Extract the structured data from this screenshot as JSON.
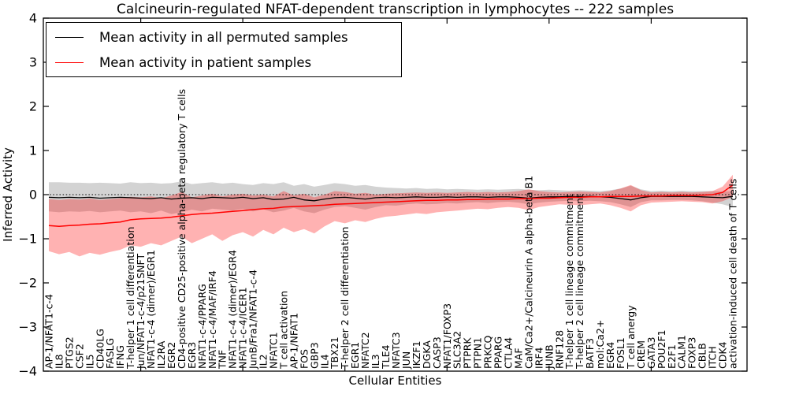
{
  "legend": {
    "entries": [
      {
        "label": "Mean activity in all permuted samples",
        "color": "#000000"
      },
      {
        "label": "Mean activity in patient samples",
        "color": "#ff0000"
      }
    ]
  },
  "chart_data": {
    "type": "line",
    "title": "Calcineurin-regulated NFAT-dependent transcription in lymphocytes -- 222 samples",
    "xlabel": "Cellular Entities",
    "ylabel": "Inferred Activity",
    "ylim": [
      -4,
      4
    ],
    "yticks": [
      4,
      3,
      2,
      1,
      0,
      -1,
      -2,
      -3,
      -4
    ],
    "x_tick_step": 10,
    "grid": false,
    "zero_line_style": "dotted",
    "legend_position": "upper left",
    "categories": [
      "AP-1/NFAT1-c-4",
      "IL8",
      "PTGS2",
      "CSF2",
      "IL5",
      "CD40LG",
      "FASLG",
      "IFNG",
      "T-helper 1 cell differentiation",
      "Jun/NFAT1-c-4/p21SNFT",
      "NFAT1-c-4 (dimer)/EGR1",
      "IL2RA",
      "EGR2",
      "CD4-positive CD25-positive alpha-beta regulatory T cells",
      "EGR3",
      "NFAT1-c-4/PPARG",
      "NFAT1-c-4/MAF/IRF4",
      "TNF",
      "NFAT1-c-4 (dimer)/EGR4",
      "NFAT1-c-4/ICER1",
      "JunB/Fra1/NFAT1-c-4",
      "IL2",
      "NFATC1",
      "T cell activation",
      "AP-1/NFAT1",
      "FOS",
      "GBP3",
      "IL4",
      "TBX21",
      "T-helper 2 cell differentiation",
      "EGR1",
      "NFATC2",
      "IL3",
      "TLE4",
      "NFATC3",
      "JUN",
      "IKZF1",
      "DGKA",
      "CASP3",
      "NFAT1/FOXP3",
      "SLC3A2",
      "PTPRK",
      "PTPN1",
      "PRKCQ",
      "PPARG",
      "CTLA4",
      "MAF",
      "CaM/Ca2+/Calcineurin A alpha-beta B1",
      "IRF4",
      "JUNB",
      "RNF128",
      "T-helper 1 cell lineage commitment",
      "T-helper 2 cell lineage commitment",
      "BATF3",
      "mol:Ca2+",
      "EGR4",
      "FOSL1",
      "T cell anergy",
      "CREM",
      "GATA3",
      "POU2F1",
      "E2F1",
      "CALM1",
      "FOXP3",
      "CBLB",
      "ITCH",
      "CDK4",
      "activation-induced cell death of T cells"
    ],
    "series": [
      {
        "name": "Mean activity in all permuted samples",
        "color": "#000000",
        "band_color": "rgba(130,130,130,0.35)",
        "values": [
          -0.06,
          -0.07,
          -0.06,
          -0.07,
          -0.06,
          -0.08,
          -0.07,
          -0.06,
          -0.07,
          -0.08,
          -0.09,
          -0.07,
          -0.1,
          -0.08,
          -0.07,
          -0.09,
          -0.06,
          -0.07,
          -0.08,
          -0.06,
          -0.09,
          -0.07,
          -0.11,
          -0.1,
          -0.06,
          -0.12,
          -0.14,
          -0.1,
          -0.07,
          -0.06,
          -0.08,
          -0.1,
          -0.07,
          -0.06,
          -0.07,
          -0.06,
          -0.05,
          -0.06,
          -0.06,
          -0.05,
          -0.06,
          -0.05,
          -0.05,
          -0.06,
          -0.05,
          -0.05,
          -0.06,
          -0.08,
          -0.06,
          -0.05,
          -0.05,
          -0.04,
          -0.05,
          -0.04,
          -0.05,
          -0.06,
          -0.09,
          -0.12,
          -0.07,
          -0.04,
          -0.04,
          -0.04,
          -0.04,
          -0.04,
          -0.05,
          -0.06,
          -0.07,
          -0.04
        ],
        "band_upper": [
          0.28,
          0.28,
          0.27,
          0.27,
          0.26,
          0.27,
          0.26,
          0.25,
          0.28,
          0.26,
          0.27,
          0.25,
          0.26,
          0.3,
          0.24,
          0.26,
          0.28,
          0.25,
          0.27,
          0.24,
          0.22,
          0.26,
          0.24,
          0.28,
          0.2,
          0.24,
          0.18,
          0.22,
          0.26,
          0.24,
          0.2,
          0.22,
          0.18,
          0.16,
          0.15,
          0.14,
          0.15,
          0.13,
          0.14,
          0.12,
          0.13,
          0.12,
          0.11,
          0.12,
          0.11,
          0.12,
          0.13,
          0.11,
          0.1,
          0.11,
          0.1,
          0.09,
          0.1,
          0.09,
          0.08,
          0.1,
          0.14,
          0.2,
          0.12,
          0.08,
          0.09,
          0.08,
          0.09,
          0.08,
          0.08,
          0.08,
          0.07,
          0.08
        ],
        "band_lower": [
          -0.38,
          -0.4,
          -0.38,
          -0.39,
          -0.37,
          -0.4,
          -0.38,
          -0.36,
          -0.4,
          -0.38,
          -0.42,
          -0.36,
          -0.44,
          -0.4,
          -0.34,
          -0.38,
          -0.32,
          -0.34,
          -0.36,
          -0.32,
          -0.38,
          -0.33,
          -0.4,
          -0.36,
          -0.3,
          -0.38,
          -0.42,
          -0.34,
          -0.28,
          -0.26,
          -0.3,
          -0.34,
          -0.28,
          -0.24,
          -0.25,
          -0.22,
          -0.2,
          -0.22,
          -0.21,
          -0.19,
          -0.2,
          -0.18,
          -0.17,
          -0.19,
          -0.17,
          -0.16,
          -0.18,
          -0.22,
          -0.18,
          -0.16,
          -0.15,
          -0.14,
          -0.15,
          -0.14,
          -0.15,
          -0.17,
          -0.22,
          -0.28,
          -0.17,
          -0.13,
          -0.13,
          -0.12,
          -0.12,
          -0.13,
          -0.15,
          -0.18,
          -0.22,
          -0.28
        ]
      },
      {
        "name": "Mean activity in patient samples",
        "color": "#ff0000",
        "band_color": "rgba(255,0,0,0.30)",
        "values": [
          -0.7,
          -0.72,
          -0.7,
          -0.69,
          -0.67,
          -0.66,
          -0.64,
          -0.62,
          -0.57,
          -0.55,
          -0.54,
          -0.53,
          -0.51,
          -0.48,
          -0.45,
          -0.43,
          -0.42,
          -0.4,
          -0.38,
          -0.36,
          -0.34,
          -0.32,
          -0.31,
          -0.28,
          -0.27,
          -0.26,
          -0.25,
          -0.24,
          -0.22,
          -0.21,
          -0.2,
          -0.19,
          -0.18,
          -0.17,
          -0.16,
          -0.15,
          -0.14,
          -0.13,
          -0.13,
          -0.12,
          -0.12,
          -0.11,
          -0.11,
          -0.1,
          -0.1,
          -0.1,
          -0.09,
          -0.09,
          -0.08,
          -0.08,
          -0.07,
          -0.06,
          -0.06,
          -0.05,
          -0.05,
          -0.04,
          -0.04,
          -0.04,
          -0.03,
          -0.03,
          -0.03,
          -0.02,
          -0.02,
          -0.02,
          -0.01,
          0.0,
          0.05,
          0.22
        ],
        "band_upper": [
          -0.1,
          -0.12,
          -0.1,
          -0.11,
          -0.09,
          -0.12,
          -0.1,
          -0.08,
          -0.05,
          -0.06,
          -0.04,
          -0.08,
          -0.02,
          0.06,
          -0.06,
          -0.02,
          0.02,
          -0.04,
          0.0,
          0.02,
          -0.02,
          0.0,
          -0.04,
          0.08,
          -0.02,
          0.02,
          -0.06,
          0.0,
          0.08,
          0.06,
          0.02,
          0.04,
          0.0,
          0.02,
          0.03,
          0.04,
          0.05,
          0.04,
          0.05,
          0.04,
          0.05,
          0.06,
          0.05,
          0.06,
          0.05,
          0.06,
          0.08,
          0.12,
          0.08,
          0.06,
          0.05,
          0.06,
          0.07,
          0.06,
          0.05,
          0.08,
          0.14,
          0.22,
          0.1,
          0.05,
          0.06,
          0.05,
          0.06,
          0.05,
          0.06,
          0.08,
          0.18,
          0.45
        ],
        "band_lower": [
          -1.28,
          -1.35,
          -1.3,
          -1.4,
          -1.32,
          -1.36,
          -1.3,
          -1.25,
          -1.15,
          -1.18,
          -1.1,
          -1.15,
          -1.05,
          -0.95,
          -1.1,
          -1.0,
          -0.9,
          -1.05,
          -0.92,
          -0.85,
          -0.95,
          -0.8,
          -0.9,
          -0.75,
          -0.85,
          -0.78,
          -0.88,
          -0.72,
          -0.6,
          -0.65,
          -0.58,
          -0.62,
          -0.55,
          -0.5,
          -0.48,
          -0.45,
          -0.42,
          -0.44,
          -0.4,
          -0.38,
          -0.36,
          -0.34,
          -0.32,
          -0.33,
          -0.3,
          -0.28,
          -0.3,
          -0.35,
          -0.28,
          -0.25,
          -0.22,
          -0.23,
          -0.24,
          -0.22,
          -0.2,
          -0.24,
          -0.3,
          -0.38,
          -0.24,
          -0.18,
          -0.17,
          -0.16,
          -0.15,
          -0.16,
          -0.17,
          -0.2,
          -0.15,
          -0.05
        ]
      }
    ]
  }
}
